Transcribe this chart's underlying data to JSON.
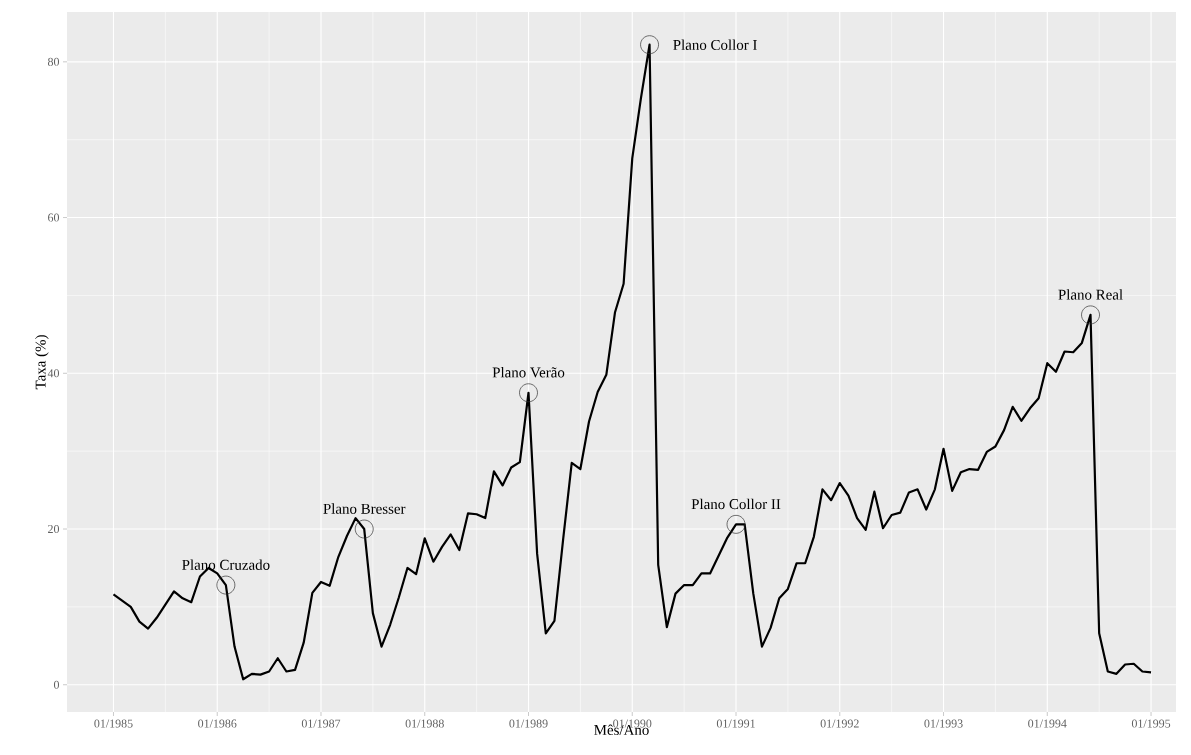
{
  "chart_data": {
    "type": "line",
    "xlabel": "Mês/Ano",
    "ylabel": "Taxa (%)",
    "x": [
      "1985-01",
      "1985-02",
      "1985-03",
      "1985-04",
      "1985-05",
      "1985-06",
      "1985-07",
      "1985-08",
      "1985-09",
      "1985-10",
      "1985-11",
      "1985-12",
      "1986-01",
      "1986-02",
      "1986-03",
      "1986-04",
      "1986-05",
      "1986-06",
      "1986-07",
      "1986-08",
      "1986-09",
      "1986-10",
      "1986-11",
      "1986-12",
      "1987-01",
      "1987-02",
      "1987-03",
      "1987-04",
      "1987-05",
      "1987-06",
      "1987-07",
      "1987-08",
      "1987-09",
      "1987-10",
      "1987-11",
      "1987-12",
      "1988-01",
      "1988-02",
      "1988-03",
      "1988-04",
      "1988-05",
      "1988-06",
      "1988-07",
      "1988-08",
      "1988-09",
      "1988-10",
      "1988-11",
      "1988-12",
      "1989-01",
      "1989-02",
      "1989-03",
      "1989-04",
      "1989-05",
      "1989-06",
      "1989-07",
      "1989-08",
      "1989-09",
      "1989-10",
      "1989-11",
      "1989-12",
      "1990-01",
      "1990-02",
      "1990-03",
      "1990-04",
      "1990-05",
      "1990-06",
      "1990-07",
      "1990-08",
      "1990-09",
      "1990-10",
      "1990-11",
      "1990-12",
      "1991-01",
      "1991-02",
      "1991-03",
      "1991-04",
      "1991-05",
      "1991-06",
      "1991-07",
      "1991-08",
      "1991-09",
      "1991-10",
      "1991-11",
      "1991-12",
      "1992-01",
      "1992-02",
      "1992-03",
      "1992-04",
      "1992-05",
      "1992-06",
      "1992-07",
      "1992-08",
      "1992-09",
      "1992-10",
      "1992-11",
      "1992-12",
      "1993-01",
      "1993-02",
      "1993-03",
      "1993-04",
      "1993-05",
      "1993-06",
      "1993-07",
      "1993-08",
      "1993-09",
      "1993-10",
      "1993-11",
      "1993-12",
      "1994-01",
      "1994-02",
      "1994-03",
      "1994-04",
      "1994-05",
      "1994-06",
      "1994-07",
      "1994-08",
      "1994-09",
      "1994-10",
      "1994-11",
      "1994-12",
      "1995-01"
    ],
    "series": [
      {
        "color": "#000000",
        "values": [
          11.6,
          10.8,
          10.0,
          8.1,
          7.2,
          8.6,
          10.3,
          12.0,
          11.1,
          10.6,
          13.9,
          15.0,
          14.3,
          12.8,
          4.9,
          0.7,
          1.4,
          1.3,
          1.7,
          3.4,
          1.7,
          1.9,
          5.4,
          11.8,
          13.2,
          12.7,
          16.4,
          19.1,
          21.4,
          20.0,
          9.2,
          4.9,
          7.7,
          11.2,
          15.0,
          14.2,
          18.8,
          15.8,
          17.7,
          19.3,
          17.3,
          22.0,
          21.9,
          21.4,
          27.4,
          25.6,
          27.9,
          28.6,
          37.5,
          16.8,
          6.6,
          8.2,
          18.6,
          28.5,
          27.7,
          33.8,
          37.6,
          39.8,
          47.8,
          51.5,
          67.6,
          75.3,
          82.2,
          15.4,
          7.4,
          11.7,
          12.8,
          12.8,
          14.3,
          14.3,
          16.6,
          18.9,
          20.6,
          20.6,
          11.7,
          4.9,
          7.3,
          11.1,
          12.3,
          15.6,
          15.6,
          19.0,
          25.1,
          23.7,
          25.9,
          24.3,
          21.4,
          19.9,
          24.8,
          20.1,
          21.8,
          22.1,
          24.7,
          25.1,
          22.5,
          25.1,
          30.3,
          24.9,
          27.3,
          27.7,
          27.6,
          29.9,
          30.6,
          32.7,
          35.7,
          33.9,
          35.5,
          36.8,
          41.3,
          40.2,
          42.8,
          42.7,
          43.9,
          47.5,
          6.6,
          1.7,
          1.4,
          2.6,
          2.7,
          1.7,
          1.6
        ]
      }
    ],
    "xlim": [
      "1984-07-20",
      "1995-03-28"
    ],
    "ylim": [
      -3.5,
      86.4
    ],
    "xticks": [
      {
        "value": "1985-01",
        "label": "01/1985"
      },
      {
        "value": "1986-01",
        "label": "01/1986"
      },
      {
        "value": "1987-01",
        "label": "01/1987"
      },
      {
        "value": "1988-01",
        "label": "01/1988"
      },
      {
        "value": "1989-01",
        "label": "01/1989"
      },
      {
        "value": "1990-01",
        "label": "01/1990"
      },
      {
        "value": "1991-01",
        "label": "01/1991"
      },
      {
        "value": "1992-01",
        "label": "01/1992"
      },
      {
        "value": "1993-01",
        "label": "01/1993"
      },
      {
        "value": "1994-01",
        "label": "01/1994"
      },
      {
        "value": "1995-01",
        "label": "01/1995"
      }
    ],
    "yticks": [
      0,
      20,
      40,
      60,
      80
    ],
    "grid": true,
    "line_style": "solid",
    "annotations": [
      {
        "text": "Plano Cruzado",
        "x": "1986-02",
        "y": 12.8
      },
      {
        "text": "Plano Bresser",
        "x": "1987-06",
        "y": 20.0
      },
      {
        "text": "Plano Verão",
        "x": "1989-01",
        "y": 37.5
      },
      {
        "text": "Plano Collor I",
        "x": "1990-03",
        "y": 82.2
      },
      {
        "text": "Plano Collor II",
        "x": "1991-01",
        "y": 20.6
      },
      {
        "text": "Plano Real",
        "x": "1994-06",
        "y": 47.5
      }
    ]
  }
}
